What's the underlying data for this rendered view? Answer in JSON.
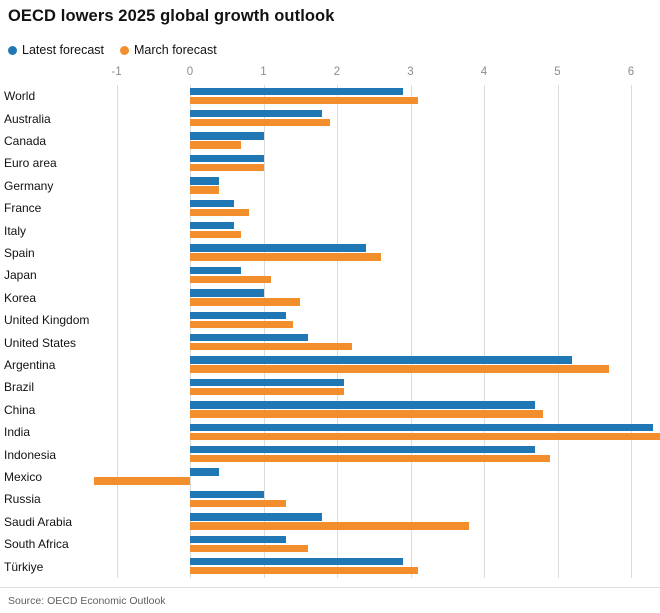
{
  "title": "OECD lowers 2025 global growth outlook",
  "source": "Source: OECD Economic Outlook",
  "colors": {
    "latest_forecast": "#1f77b4",
    "march_forecast": "#f28e2b",
    "gridline": "#dcdcdc",
    "axis_text": "#8c8c8c"
  },
  "chart_data": {
    "type": "bar",
    "orientation": "horizontal",
    "title": "OECD lowers 2025 global growth outlook",
    "xlabel": "",
    "ylabel": "",
    "axis_position": "top",
    "grid": true,
    "legend_position": "top-left",
    "xlim": [
      -1.4,
      6.4
    ],
    "x_ticks": [
      -1,
      0,
      1,
      2,
      3,
      4,
      5,
      6
    ],
    "categories": [
      "World",
      "Australia",
      "Canada",
      "Euro area",
      "Germany",
      "France",
      "Italy",
      "Spain",
      "Japan",
      "Korea",
      "United Kingdom",
      "United States",
      "Argentina",
      "Brazil",
      "China",
      "India",
      "Indonesia",
      "Mexico",
      "Russia",
      "Saudi Arabia",
      "South Africa",
      "Türkiye"
    ],
    "series": [
      {
        "name": "Latest forecast",
        "color": "#1f77b4",
        "values": [
          2.9,
          1.8,
          1.0,
          1.0,
          0.4,
          0.6,
          0.6,
          2.4,
          0.7,
          1.0,
          1.3,
          1.6,
          5.2,
          2.1,
          4.7,
          6.3,
          4.7,
          0.4,
          1.0,
          1.8,
          1.3,
          2.9
        ]
      },
      {
        "name": "March forecast",
        "color": "#f28e2b",
        "values": [
          3.1,
          1.9,
          0.7,
          1.0,
          0.4,
          0.8,
          0.7,
          2.6,
          1.1,
          1.5,
          1.4,
          2.2,
          5.7,
          2.1,
          4.8,
          6.4,
          4.9,
          -1.3,
          1.3,
          3.8,
          1.6,
          3.1
        ]
      }
    ]
  }
}
